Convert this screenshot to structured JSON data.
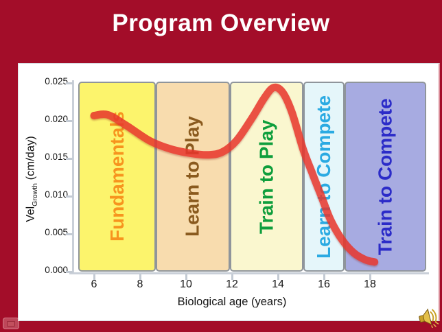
{
  "slide": {
    "title": "Program Overview",
    "background_color": "#A30D29",
    "title_color": "#FFFFFF",
    "panel_color": "#FFFFFF",
    "icons": {
      "audio": "speaker-icon",
      "nav": "slide-nav-icon"
    }
  },
  "chart_data": {
    "type": "line",
    "title": "",
    "xlabel": "Biological age (years)",
    "ylabel_parts": {
      "main": "Vel",
      "sub": "Growth",
      "units": " (cm/day)"
    },
    "x_ticks": [
      6,
      8,
      10,
      12,
      14,
      16,
      18
    ],
    "y_ticks": [
      "0.025",
      "0.020",
      "0.015",
      "0.010",
      "0.005",
      "0.000"
    ],
    "xlim": [
      5.3,
      20.45
    ],
    "ylim": [
      0,
      0.025
    ],
    "grid": false,
    "legend": "none",
    "axis_color": "#C9CFD8",
    "curve_color": "#E8352B",
    "series": [
      {
        "name": "growth velocity curve",
        "x": [
          6.0,
          6.6,
          7.4,
          8.4,
          9.3,
          10.2,
          11.0,
          11.6,
          12.2,
          12.9,
          13.4,
          13.8,
          14.2,
          14.6,
          15.1,
          15.5,
          15.9,
          16.3,
          16.8,
          17.3,
          17.8,
          18.2
        ],
        "y": [
          0.0205,
          0.0206,
          0.0192,
          0.0172,
          0.0161,
          0.0155,
          0.0153,
          0.0157,
          0.0172,
          0.0203,
          0.0228,
          0.0242,
          0.0236,
          0.021,
          0.016,
          0.0128,
          0.0097,
          0.0066,
          0.004,
          0.0023,
          0.0014,
          0.0011
        ]
      }
    ],
    "bands": [
      {
        "label": "Fundamentals",
        "x_start": 5.3,
        "x_end": 8.7,
        "fill": "#FCF46C",
        "text_color": "#F7941E"
      },
      {
        "label": "Learn to Play",
        "x_start": 8.7,
        "x_end": 11.9,
        "fill": "#F8DCAE",
        "text_color": "#8A5A1E"
      },
      {
        "label": "Train to Play",
        "x_start": 11.9,
        "x_end": 15.1,
        "fill": "#FAF7CF",
        "text_color": "#0E9E3C"
      },
      {
        "label": "Learn to Compete",
        "x_start": 15.1,
        "x_end": 16.9,
        "fill": "#E5F6FA",
        "text_color": "#2BAAE2"
      },
      {
        "label": "Train to Compete",
        "x_start": 16.9,
        "x_end": 20.45,
        "fill": "#A7ABE1",
        "text_color": "#2B2BC8"
      }
    ]
  }
}
